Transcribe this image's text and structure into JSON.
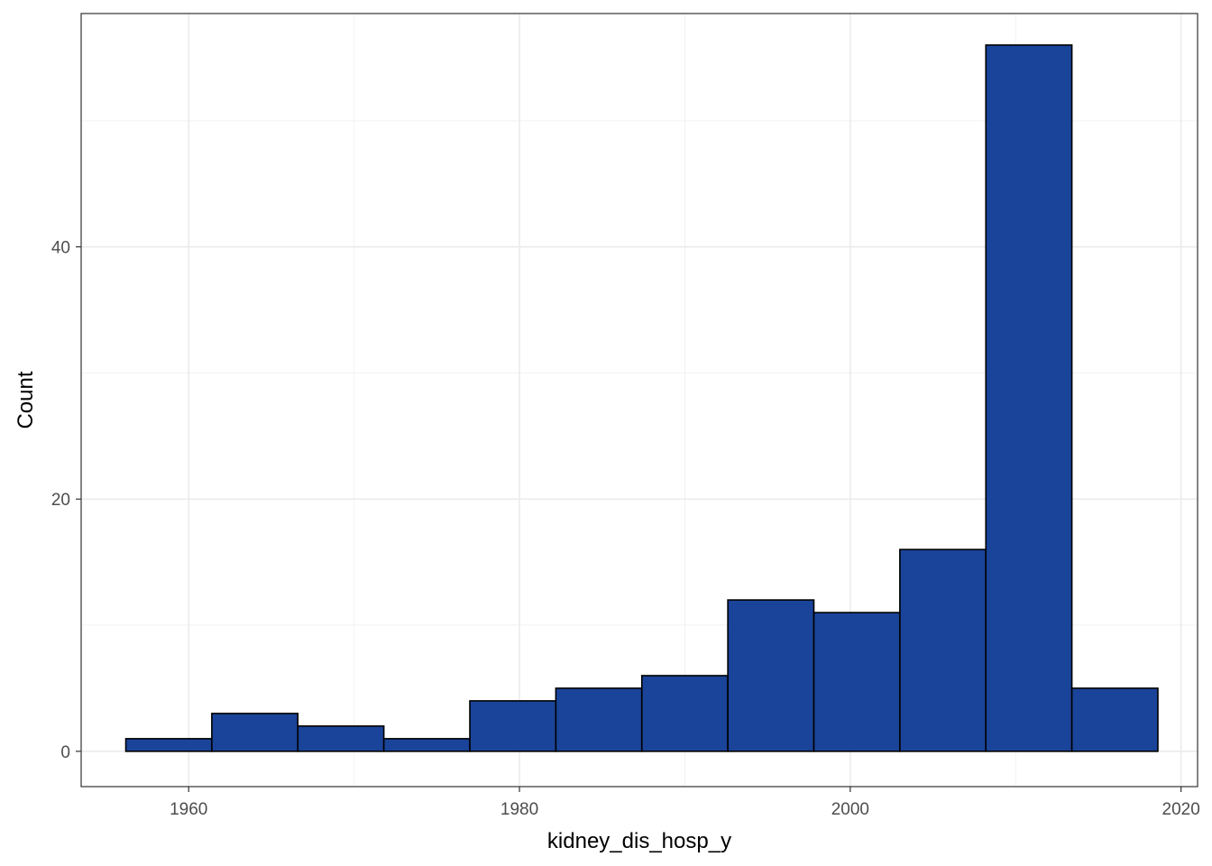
{
  "chart_data": {
    "type": "bar",
    "subtype": "histogram",
    "title": "",
    "xlabel": "kidney_dis_hosp_y",
    "ylabel": "Count",
    "xlim": [
      1953.5,
      2021
    ],
    "ylim": [
      -2.8,
      58.5
    ],
    "bins": [
      {
        "x0": 1956.2,
        "x1": 1961.4,
        "count": 1
      },
      {
        "x0": 1961.4,
        "x1": 1966.6,
        "count": 3
      },
      {
        "x0": 1966.6,
        "x1": 1971.8,
        "count": 2
      },
      {
        "x0": 1971.8,
        "x1": 1977.0,
        "count": 1
      },
      {
        "x0": 1977.0,
        "x1": 1982.2,
        "count": 4
      },
      {
        "x0": 1982.2,
        "x1": 1987.4,
        "count": 5
      },
      {
        "x0": 1987.4,
        "x1": 1992.6,
        "count": 6
      },
      {
        "x0": 1992.6,
        "x1": 1997.8,
        "count": 12
      },
      {
        "x0": 1997.8,
        "x1": 2003.0,
        "count": 11
      },
      {
        "x0": 2003.0,
        "x1": 2008.2,
        "count": 16
      },
      {
        "x0": 2008.2,
        "x1": 2013.4,
        "count": 56
      },
      {
        "x0": 2013.4,
        "x1": 2018.6,
        "count": 5
      }
    ],
    "x_ticks": [
      1960,
      1980,
      2000,
      2020
    ],
    "x_minor": [
      1970,
      1990,
      2010
    ],
    "y_ticks": [
      0,
      20,
      40
    ],
    "y_minor": [
      10,
      30,
      50
    ],
    "fill_color": "#1a4499",
    "outline_color": "#000000",
    "grid": true,
    "legend": "none"
  }
}
